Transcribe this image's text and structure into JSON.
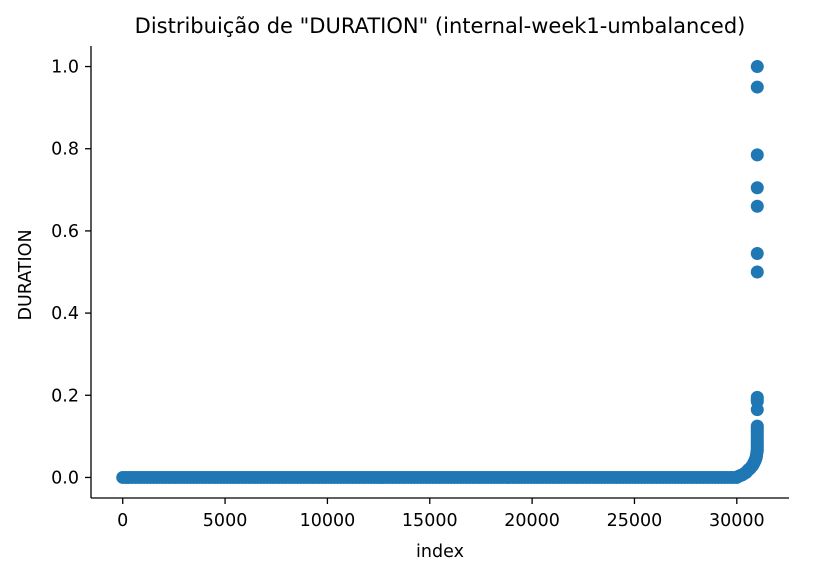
{
  "chart_data": {
    "type": "scatter",
    "title": "Distribuição de \"DURATION\" (internal-week1-umbalanced)",
    "xlabel": "index",
    "ylabel": "DURATION",
    "xlim": [
      -1550,
      32550
    ],
    "ylim": [
      -0.05,
      1.05
    ],
    "xticks": [
      0,
      5000,
      10000,
      15000,
      20000,
      25000,
      30000
    ],
    "xtick_labels": [
      "0",
      "5000",
      "10000",
      "15000",
      "20000",
      "25000",
      "30000"
    ],
    "yticks": [
      0.0,
      0.2,
      0.4,
      0.6,
      0.8,
      1.0
    ],
    "ytick_labels": [
      "0.0",
      "0.2",
      "0.4",
      "0.6",
      "0.8",
      "1.0"
    ],
    "grid": false,
    "legend": "none",
    "spines": "left-bottom",
    "color": "#1f77b4",
    "baseline": {
      "x_start": 0,
      "x_end": 30000,
      "y": 0.0,
      "step": 150
    },
    "x": [
      30050,
      30150,
      30250,
      30350,
      30450,
      30500,
      30550,
      30600,
      30650,
      30700,
      30750,
      30780,
      30800,
      30820,
      30840,
      30860,
      30880,
      30900,
      30920,
      30940,
      30950,
      30960,
      30970,
      30980,
      30990,
      31000,
      31000,
      31000,
      31000,
      31000,
      31000,
      31000,
      31000,
      31000,
      31000,
      31000,
      31000,
      31000,
      31000,
      31000,
      31000,
      31000,
      31000,
      31000,
      31000,
      31000,
      31000,
      31000
    ],
    "y": [
      0.002,
      0.004,
      0.006,
      0.009,
      0.012,
      0.015,
      0.018,
      0.02,
      0.022,
      0.025,
      0.028,
      0.03,
      0.032,
      0.034,
      0.036,
      0.038,
      0.04,
      0.042,
      0.045,
      0.048,
      0.05,
      0.053,
      0.056,
      0.06,
      0.063,
      0.066,
      0.07,
      0.075,
      0.08,
      0.085,
      0.09,
      0.095,
      0.1,
      0.105,
      0.11,
      0.115,
      0.12,
      0.125,
      0.165,
      0.185,
      0.19,
      0.195,
      0.5,
      0.545,
      0.66,
      0.705,
      0.785,
      0.95
    ],
    "y_extra": [
      1.0
    ]
  }
}
